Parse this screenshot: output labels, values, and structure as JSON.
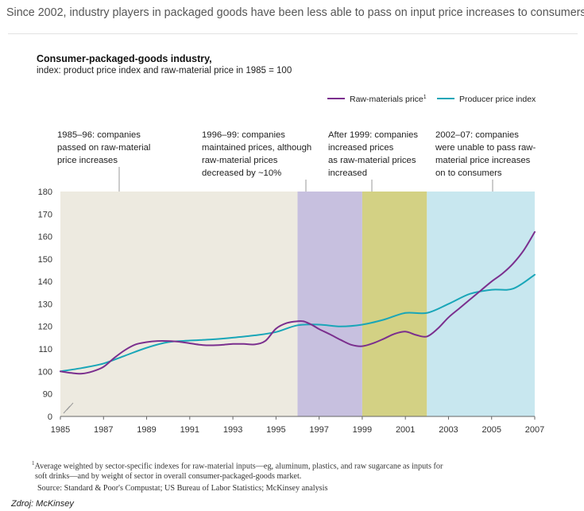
{
  "headline": "Since 2002, industry players in packaged goods have been less able to pass on input price increases to consumers.",
  "chart_data": {
    "type": "line",
    "title": "Consumer-packaged-goods industry,",
    "subtitle": "index: product price index and raw-material price in 1985 = 100",
    "xlim": [
      1985,
      2007
    ],
    "ylim": [
      0,
      180
    ],
    "x_ticks": [
      "1985",
      "1987",
      "1989",
      "1991",
      "1993",
      "1995",
      "1997",
      "1999",
      "2001",
      "2003",
      "2005",
      "2007"
    ],
    "y_ticks": [
      "0",
      "90",
      "100",
      "110",
      "120",
      "130",
      "140",
      "150",
      "160",
      "170",
      "180"
    ],
    "axis_break": "between 0 and 90",
    "legend_position": "top-right",
    "series": [
      {
        "name": "Raw-materials price",
        "legend_superscript": "1",
        "color": "#7b2f8e",
        "points": [
          [
            1985,
            100
          ],
          [
            1985.5,
            99.3
          ],
          [
            1986,
            99
          ],
          [
            1986.5,
            100
          ],
          [
            1987,
            102
          ],
          [
            1987.5,
            106
          ],
          [
            1988,
            109.5
          ],
          [
            1988.5,
            112
          ],
          [
            1989,
            113
          ],
          [
            1989.5,
            113.5
          ],
          [
            1990,
            113.5
          ],
          [
            1990.5,
            113.2
          ],
          [
            1991,
            112.5
          ],
          [
            1991.5,
            111.8
          ],
          [
            1992,
            111.6
          ],
          [
            1992.5,
            111.8
          ],
          [
            1993,
            112.2
          ],
          [
            1993.5,
            112.2
          ],
          [
            1994,
            112
          ],
          [
            1994.5,
            113.5
          ],
          [
            1995,
            119
          ],
          [
            1995.5,
            121.5
          ],
          [
            1996,
            122.3
          ],
          [
            1996.3,
            122.2
          ],
          [
            1996.7,
            120.5
          ],
          [
            1997,
            118.8
          ],
          [
            1997.5,
            116.5
          ],
          [
            1998,
            114
          ],
          [
            1998.5,
            111.8
          ],
          [
            1999,
            111.2
          ],
          [
            1999.5,
            112.5
          ],
          [
            2000,
            114.5
          ],
          [
            2000.5,
            116.7
          ],
          [
            2001,
            117.7
          ],
          [
            2001.5,
            116.2
          ],
          [
            2002,
            115.5
          ],
          [
            2002.5,
            119
          ],
          [
            2003,
            124
          ],
          [
            2003.5,
            128
          ],
          [
            2004,
            132
          ],
          [
            2004.5,
            136
          ],
          [
            2005,
            140
          ],
          [
            2005.5,
            143.5
          ],
          [
            2006,
            148
          ],
          [
            2006.5,
            154
          ],
          [
            2007,
            162
          ]
        ]
      },
      {
        "name": "Producer price index",
        "color": "#19a6b8",
        "points": [
          [
            1985,
            100
          ],
          [
            1986,
            101.5
          ],
          [
            1987,
            103.5
          ],
          [
            1988,
            107
          ],
          [
            1989,
            110.5
          ],
          [
            1990,
            113
          ],
          [
            1991,
            113.7
          ],
          [
            1992,
            114.2
          ],
          [
            1993,
            115
          ],
          [
            1994,
            116
          ],
          [
            1995,
            117.5
          ],
          [
            1996,
            120.5
          ],
          [
            1997,
            120.8
          ],
          [
            1998,
            120
          ],
          [
            1999,
            120.8
          ],
          [
            2000,
            123
          ],
          [
            2001,
            126
          ],
          [
            2002,
            126
          ],
          [
            2003,
            130
          ],
          [
            2004,
            134.5
          ],
          [
            2005,
            136.3
          ],
          [
            2006,
            136.8
          ],
          [
            2007,
            143
          ]
        ]
      }
    ],
    "periods": [
      {
        "from": 1985,
        "to": 1996,
        "color": "#edeae0",
        "annotation": [
          "1985–96: companies",
          "passed on raw-material",
          "price increases"
        ]
      },
      {
        "from": 1996,
        "to": 1999,
        "color": "#c7c0df",
        "annotation": [
          "1996–99: companies",
          "maintained prices, although",
          "raw-material prices",
          "decreased by ~10%"
        ]
      },
      {
        "from": 1999,
        "to": 2002,
        "color": "#d3d184",
        "annotation": [
          "After 1999: companies",
          "increased prices",
          "as raw-material prices",
          "increased"
        ]
      },
      {
        "from": 2002,
        "to": 2007,
        "color": "#c8e7ef",
        "annotation": [
          "2002–07: companies",
          "were unable to pass raw-",
          "material price increases",
          "on to consumers"
        ]
      }
    ]
  },
  "footnote": {
    "marker": "1",
    "line1": "Average weighted by sector-specific indexes for raw-material inputs—eg, aluminum, plastics, and raw sugarcane as inputs for",
    "line2": "soft drinks—and by weight of sector in overall consumer-packaged-goods market."
  },
  "source": "Source: Standard & Poor's Compustat; US Bureau of Labor Statistics; McKinsey analysis",
  "credit": "Zdroj: McKinsey"
}
